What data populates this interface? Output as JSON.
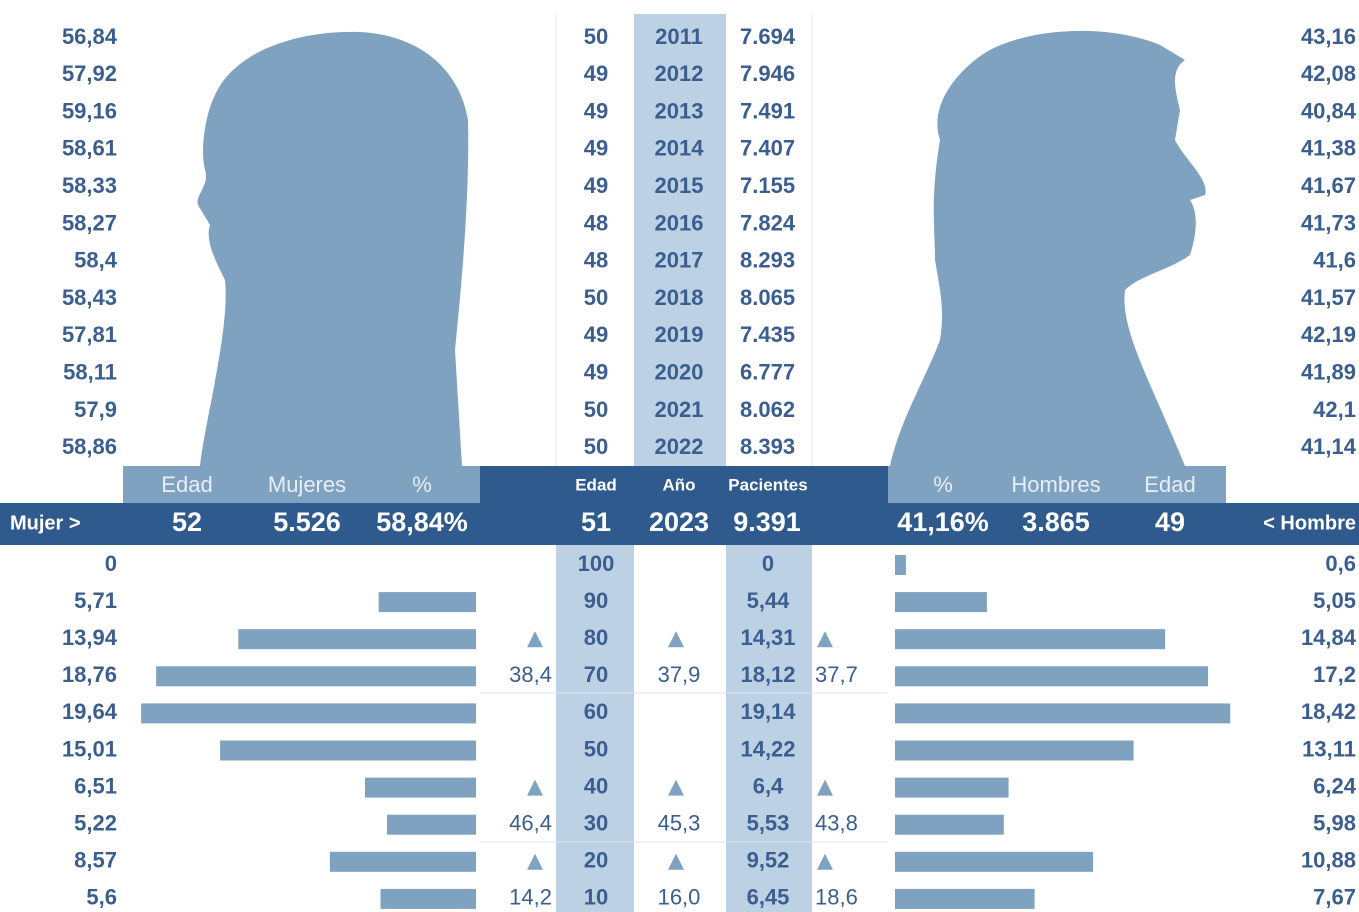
{
  "history": {
    "rows": [
      [
        "56,84",
        "50",
        "2011",
        "7.694",
        "43,16"
      ],
      [
        "57,92",
        "49",
        "2012",
        "7.946",
        "42,08"
      ],
      [
        "59,16",
        "49",
        "2013",
        "7.491",
        "40,84"
      ],
      [
        "58,61",
        "49",
        "2014",
        "7.407",
        "41,38"
      ],
      [
        "58,33",
        "49",
        "2015",
        "7.155",
        "41,67"
      ],
      [
        "58,27",
        "48",
        "2016",
        "7.824",
        "41,73"
      ],
      [
        "58,4",
        "48",
        "2017",
        "8.293",
        "41,6"
      ],
      [
        "58,43",
        "50",
        "2018",
        "8.065",
        "41,57"
      ],
      [
        "57,81",
        "49",
        "2019",
        "7.435",
        "42,19"
      ],
      [
        "58,11",
        "49",
        "2020",
        "6.777",
        "41,89"
      ],
      [
        "57,9",
        "50",
        "2021",
        "8.062",
        "42,1"
      ],
      [
        "58,86",
        "50",
        "2022",
        "8.393",
        "41,14"
      ]
    ]
  },
  "header": [
    "Edad",
    "Mujeres",
    "%",
    "Edad",
    "Año",
    "Pacientes",
    "%",
    "Hombres",
    "Edad"
  ],
  "summary": [
    "Mujer >",
    "52",
    "5.526",
    "58,84%",
    "51",
    "2023",
    "9.391",
    "41,16%",
    "3.865",
    "49",
    "< Hombre"
  ],
  "chart_data": {
    "type": "bar",
    "categories": [
      "100",
      "90",
      "80",
      "70",
      "60",
      "50",
      "40",
      "30",
      "20",
      "10"
    ],
    "xlim": [
      0,
      20
    ],
    "series": [
      {
        "name": "Mujeres",
        "color": "#7fa2c0",
        "values": [
          0,
          5.71,
          13.94,
          18.76,
          19.64,
          15.01,
          6.51,
          5.22,
          8.57,
          5.6
        ],
        "value_labels": [
          "0",
          "5,71",
          "13,94",
          "18,76",
          "19,64",
          "15,01",
          "6,51",
          "5,22",
          "8,57",
          "5,6"
        ]
      },
      {
        "name": "Hombres",
        "color": "#7fa2c0",
        "values": [
          0.6,
          5.05,
          14.84,
          17.2,
          18.42,
          13.11,
          6.24,
          5.98,
          10.88,
          7.67
        ],
        "value_labels": [
          "0,6",
          "5,05",
          "14,84",
          "17,2",
          "18,42",
          "13,11",
          "6,24",
          "5,98",
          "10,88",
          "7,67"
        ]
      }
    ],
    "total_labels": [
      "0",
      "5,44",
      "14,31",
      "18,12",
      "19,14",
      "14,22",
      "6,4",
      "5,53",
      "9,52",
      "6,45"
    ],
    "brackets": [
      [
        "38,4",
        "37,9",
        "37,7"
      ],
      [
        "46,4",
        "45,3",
        "43,8"
      ],
      [
        "14,2",
        "16,0",
        "18,6"
      ]
    ]
  }
}
